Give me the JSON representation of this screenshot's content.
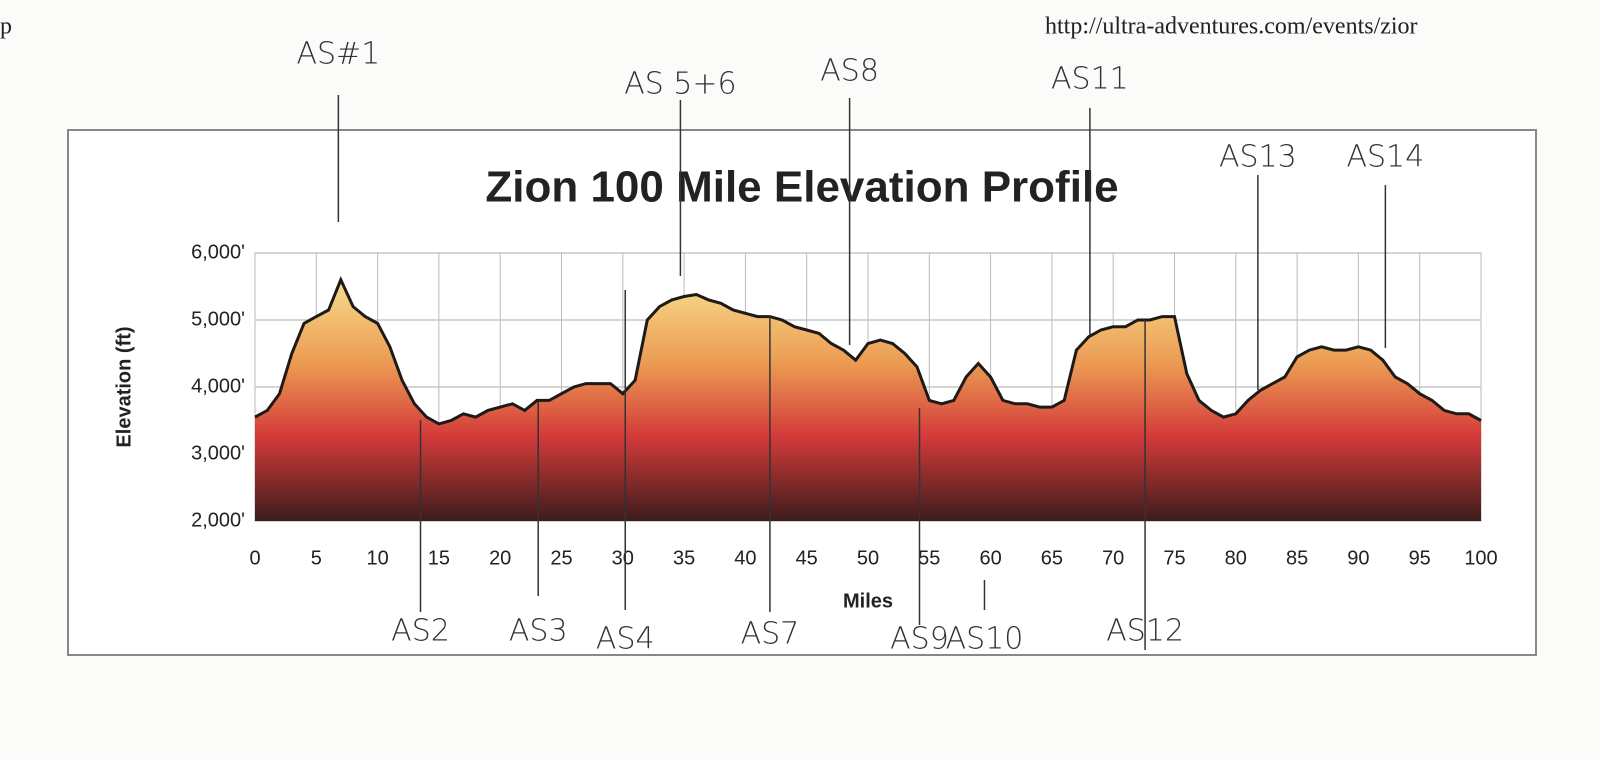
{
  "header": {
    "left": "p",
    "right": "http://ultra-adventures.com/events/zior"
  },
  "chart_data": {
    "type": "area",
    "title": "Zion 100 Mile Elevation Profile",
    "xlabel": "Miles",
    "ylabel": "Elevation (ft)",
    "x": [
      0,
      1,
      2,
      3,
      4,
      5,
      6,
      7,
      8,
      9,
      10,
      11,
      12,
      13,
      14,
      15,
      16,
      17,
      18,
      19,
      20,
      21,
      22,
      23,
      24,
      25,
      26,
      27,
      28,
      29,
      30,
      31,
      32,
      33,
      34,
      35,
      36,
      37,
      38,
      39,
      40,
      41,
      42,
      43,
      44,
      45,
      46,
      47,
      48,
      49,
      50,
      51,
      52,
      53,
      54,
      55,
      56,
      57,
      58,
      59,
      60,
      61,
      62,
      63,
      64,
      65,
      66,
      67,
      68,
      69,
      70,
      71,
      72,
      73,
      74,
      75,
      76,
      77,
      78,
      79,
      80,
      81,
      82,
      83,
      84,
      85,
      86,
      87,
      88,
      89,
      90,
      91,
      92,
      93,
      94,
      95,
      96,
      97,
      98,
      99,
      100
    ],
    "values": [
      3550,
      3650,
      3900,
      4500,
      4950,
      5050,
      5150,
      5600,
      5200,
      5050,
      4950,
      4600,
      4100,
      3750,
      3550,
      3450,
      3500,
      3600,
      3550,
      3650,
      3700,
      3750,
      3650,
      3800,
      3800,
      3900,
      4000,
      4050,
      4050,
      4050,
      3900,
      4100,
      5000,
      5200,
      5300,
      5350,
      5380,
      5300,
      5250,
      5150,
      5100,
      5050,
      5050,
      5000,
      4900,
      4850,
      4800,
      4650,
      4550,
      4400,
      4650,
      4700,
      4650,
      4500,
      4300,
      3800,
      3750,
      3800,
      4150,
      4350,
      4150,
      3800,
      3750,
      3750,
      3700,
      3700,
      3800,
      4550,
      4750,
      4850,
      4900,
      4900,
      5000,
      5000,
      5050,
      5050,
      4200,
      3800,
      3650,
      3550,
      3600,
      3800,
      3950,
      4050,
      4150,
      4450,
      4550,
      4600,
      4550,
      4550,
      4600,
      4550,
      4400,
      4150,
      4050,
      3900,
      3800,
      3650,
      3600,
      3600,
      3500
    ],
    "xlim": [
      0,
      100
    ],
    "xticks": [
      0,
      5,
      10,
      15,
      20,
      25,
      30,
      35,
      40,
      45,
      50,
      55,
      60,
      65,
      70,
      75,
      80,
      85,
      90,
      95,
      100
    ],
    "ylim": [
      2000,
      6000
    ],
    "yticks": [
      {
        "value": 2000,
        "label": "2,000'"
      },
      {
        "value": 3000,
        "label": "3,000'"
      },
      {
        "value": 4000,
        "label": "4,000'"
      },
      {
        "value": 5000,
        "label": "5,000'"
      },
      {
        "value": 6000,
        "label": "6,000'"
      }
    ],
    "grid": true,
    "color": "#1e1a18",
    "annotations": [
      {
        "text": "AS#1",
        "x": 6.8
      },
      {
        "text": "AS2",
        "x": 13.5
      },
      {
        "text": "AS3",
        "x": 23.1
      },
      {
        "text": "AS 5+6",
        "x": 34.7
      },
      {
        "text": "AS4",
        "x": 30.2
      },
      {
        "text": "AS8",
        "x": 48.5
      },
      {
        "text": "AS7",
        "x": 42
      },
      {
        "text": "AS11",
        "x": 68.1
      },
      {
        "text": "AS9",
        "x": 54.2
      },
      {
        "text": "AS10",
        "x": 59.5
      },
      {
        "text": "AS13",
        "x": 81.8
      },
      {
        "text": "AS14",
        "x": 92.2
      },
      {
        "text": "AS12",
        "x": 72.6
      }
    ]
  }
}
